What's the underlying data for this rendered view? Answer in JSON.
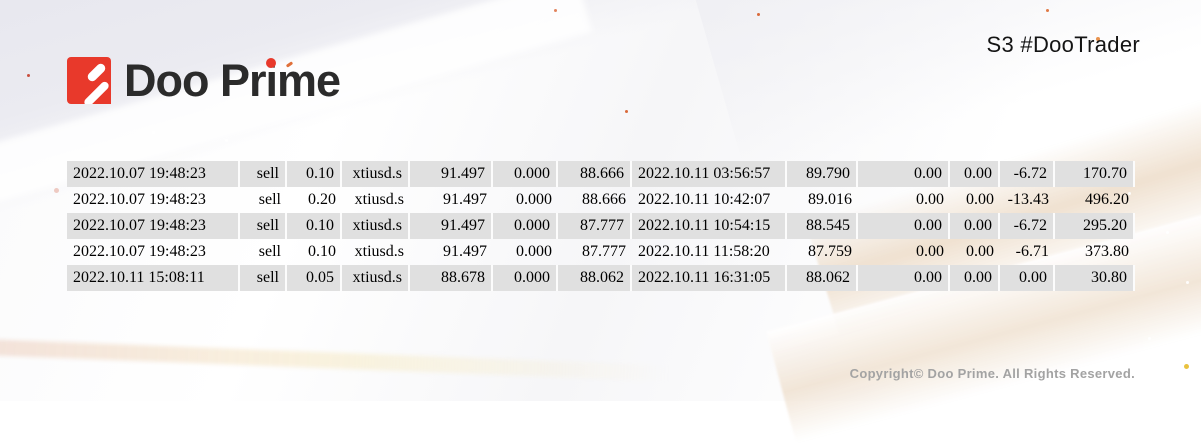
{
  "brand": {
    "wordmark_parts": [
      "Doo Pr",
      "i",
      "me"
    ]
  },
  "header": {
    "label": "S3 #DooTrader"
  },
  "trades": {
    "columns": [
      "open_time",
      "type",
      "size",
      "symbol",
      "open_price",
      "stop_loss",
      "take_profit",
      "close_time",
      "close_price",
      "commission",
      "taxes",
      "swap",
      "profit"
    ],
    "rows": [
      [
        "2022.10.07 19:48:23",
        "sell",
        "0.10",
        "xtiusd.s",
        "91.497",
        "0.000",
        "88.666",
        "2022.10.11 03:56:57",
        "89.790",
        "0.00",
        "0.00",
        "-6.72",
        "170.70"
      ],
      [
        "2022.10.07 19:48:23",
        "sell",
        "0.20",
        "xtiusd.s",
        "91.497",
        "0.000",
        "88.666",
        "2022.10.11 10:42:07",
        "89.016",
        "0.00",
        "0.00",
        "-13.43",
        "496.20"
      ],
      [
        "2022.10.07 19:48:23",
        "sell",
        "0.10",
        "xtiusd.s",
        "91.497",
        "0.000",
        "87.777",
        "2022.10.11 10:54:15",
        "88.545",
        "0.00",
        "0.00",
        "-6.72",
        "295.20"
      ],
      [
        "2022.10.07 19:48:23",
        "sell",
        "0.10",
        "xtiusd.s",
        "91.497",
        "0.000",
        "87.777",
        "2022.10.11 11:58:20",
        "87.759",
        "0.00",
        "0.00",
        "-6.71",
        "373.80"
      ],
      [
        "2022.10.11 15:08:11",
        "sell",
        "0.05",
        "xtiusd.s",
        "88.678",
        "0.000",
        "88.062",
        "2022.10.11 16:31:05",
        "88.062",
        "0.00",
        "0.00",
        "0.00",
        "30.80"
      ]
    ]
  },
  "footer": {
    "copyright": "Copyright© Doo Prime. All Rights Reserved."
  },
  "colors": {
    "brand_red": "#e8392b",
    "row_gray": "#e0e0e0",
    "table_text": "#000000",
    "copyright_gray": "#a3a3a3"
  }
}
